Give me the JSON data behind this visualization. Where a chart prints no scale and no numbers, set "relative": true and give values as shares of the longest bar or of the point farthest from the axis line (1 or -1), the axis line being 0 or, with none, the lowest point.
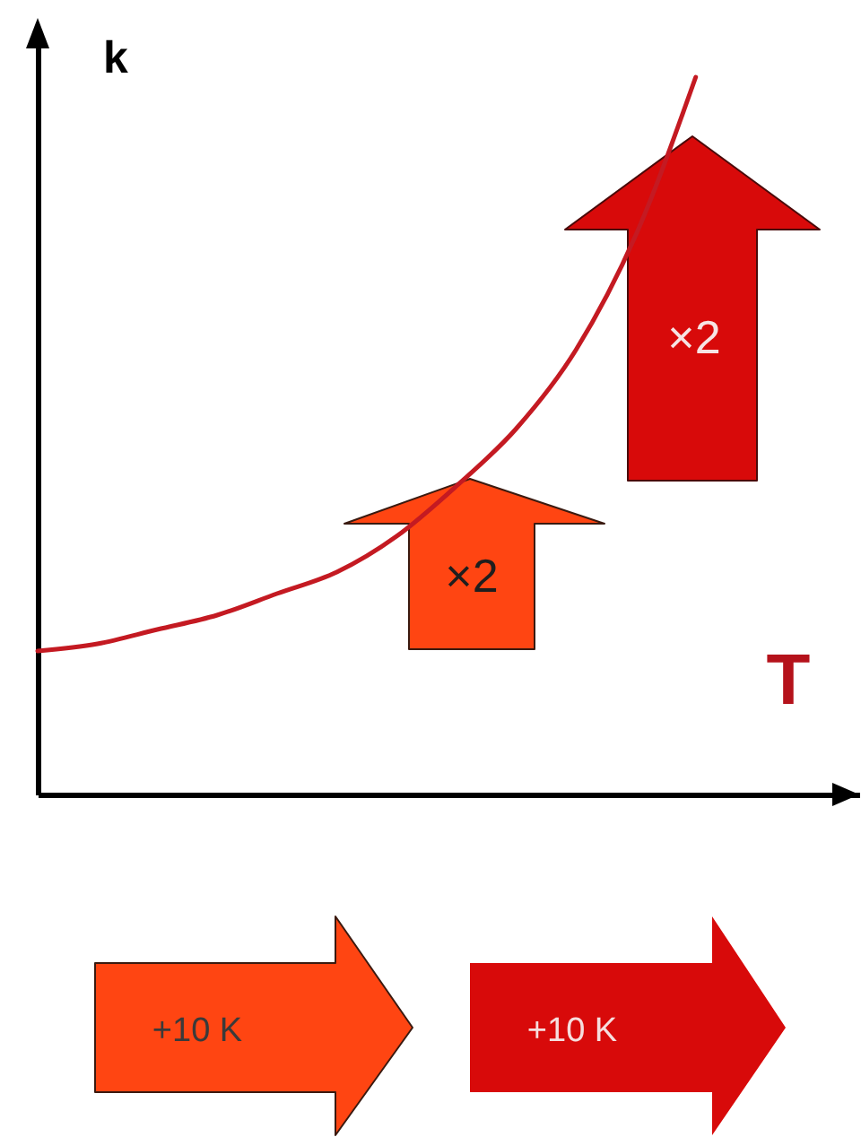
{
  "chart_data": {
    "type": "line",
    "xlabel": "T",
    "ylabel": "k",
    "relative": true,
    "categories": [
      null,
      null,
      null,
      null,
      null,
      null,
      null,
      null,
      null,
      null,
      null,
      null
    ],
    "series": [
      {
        "color": "#c41a22",
        "values": [
          0.2,
          0.21,
          0.23,
          0.25,
          0.28,
          0.31,
          0.36,
          0.43,
          0.51,
          0.62,
          0.78,
          1.0
        ]
      }
    ],
    "annotations": [
      "×2",
      "×2",
      "+10 K",
      "+10 K"
    ]
  }
}
